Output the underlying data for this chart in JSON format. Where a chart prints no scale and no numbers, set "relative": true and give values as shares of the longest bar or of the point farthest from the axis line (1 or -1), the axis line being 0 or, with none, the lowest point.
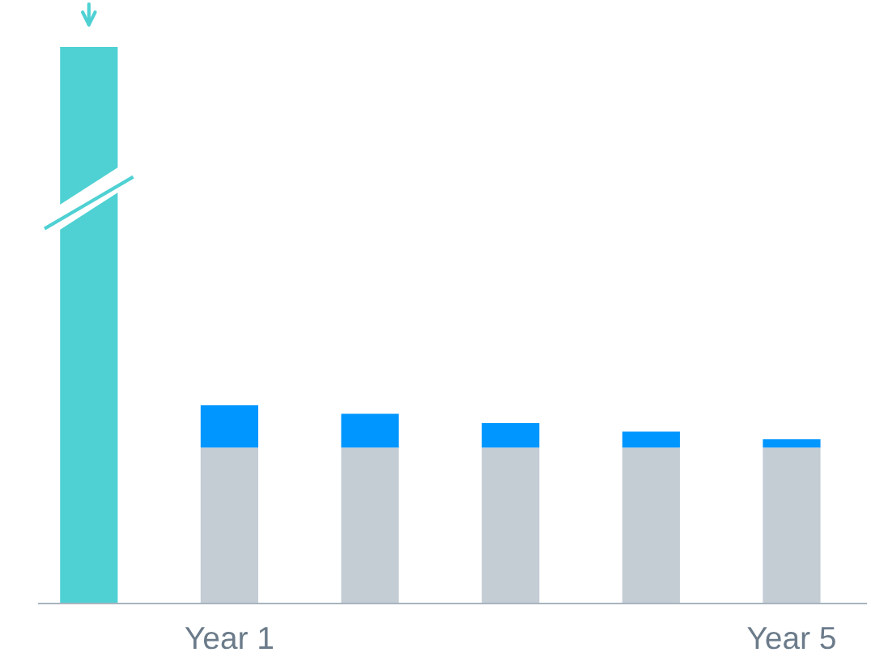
{
  "chart_data": {
    "type": "bar",
    "relative": true,
    "stacked": true,
    "categories": [
      null,
      "Year 1",
      null,
      null,
      null,
      "Year 5"
    ],
    "series": [
      {
        "color": "#4fd1d3",
        "values": [
          1,
          null,
          null,
          null,
          null,
          null
        ]
      },
      {
        "color": "#c4ccd4",
        "values": [
          null,
          0.28,
          0.28,
          0.28,
          0.28,
          0.28
        ]
      },
      {
        "color": "#0096ff",
        "values": [
          null,
          0.076,
          0.061,
          0.044,
          0.029,
          0.015
        ]
      }
    ]
  }
}
